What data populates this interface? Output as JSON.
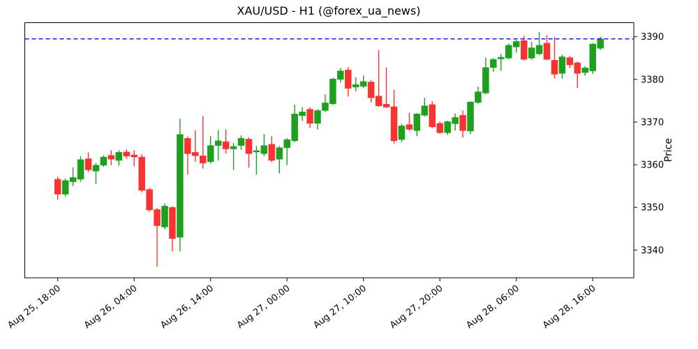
{
  "chart_data": {
    "type": "candlestick",
    "title": "XAU/USD - H1 (@forex_ua_news)",
    "symbol": "XAU/USD",
    "timeframe": "H1",
    "source_handle": "@forex_ua_news",
    "ylabel_right": "Price",
    "legend": "none",
    "grid": false,
    "y_ticks": [
      3340,
      3350,
      3360,
      3370,
      3380,
      3390
    ],
    "ylim": [
      3333.5,
      3393.3
    ],
    "x_tick_labels": [
      "Aug 25, 18:00",
      "Aug 26, 04:00",
      "Aug 26, 14:00",
      "Aug 27, 00:00",
      "Aug 27, 10:00",
      "Aug 27, 20:00",
      "Aug 28, 06:00",
      "Aug 28, 16:00"
    ],
    "x_tick_candle_indices": [
      0,
      10,
      20,
      30,
      40,
      50,
      60,
      70
    ],
    "hline": {
      "value": 3389.5,
      "color": "#0000ee",
      "style": "dashed"
    },
    "colors": {
      "up": "#1da01d",
      "down": "#f93232",
      "axis": "#000000",
      "background": "#ffffff"
    },
    "columns": [
      "time",
      "open",
      "high",
      "low",
      "close"
    ],
    "candles": [
      [
        "Aug 25 18:00",
        3356.6,
        3357.2,
        3351.8,
        3353.1
      ],
      [
        "Aug 25 19:00",
        3353.1,
        3356.8,
        3352.6,
        3356.3
      ],
      [
        "Aug 25 20:00",
        3356.0,
        3359.4,
        3355.0,
        3357.0
      ],
      [
        "Aug 25 21:00",
        3356.6,
        3362.0,
        3356.0,
        3361.2
      ],
      [
        "Aug 25 22:00",
        3361.4,
        3362.9,
        3358.3,
        3358.8
      ],
      [
        "Aug 25 23:00",
        3358.5,
        3360.4,
        3355.5,
        3359.9
      ],
      [
        "Aug 26 00:00",
        3359.9,
        3362.2,
        3359.5,
        3361.8
      ],
      [
        "Aug 26 01:00",
        3362.2,
        3363.4,
        3359.9,
        3361.3
      ],
      [
        "Aug 26 02:00",
        3361.0,
        3363.4,
        3359.8,
        3362.9
      ],
      [
        "Aug 26 03:00",
        3363.0,
        3363.6,
        3361.4,
        3362.0
      ],
      [
        "Aug 26 04:00",
        3362.3,
        3363.4,
        3359.6,
        3361.8
      ],
      [
        "Aug 26 05:00",
        3361.8,
        3362.5,
        3353.5,
        3354.0
      ],
      [
        "Aug 26 06:00",
        3354.2,
        3354.6,
        3349.0,
        3349.4
      ],
      [
        "Aug 26 07:00",
        3349.5,
        3349.9,
        3336.1,
        3345.7
      ],
      [
        "Aug 26 08:00",
        3345.4,
        3350.9,
        3344.9,
        3350.3
      ],
      [
        "Aug 26 09:00",
        3350.0,
        3350.3,
        3339.7,
        3342.7
      ],
      [
        "Aug 26 10:00",
        3343.0,
        3370.8,
        3339.7,
        3367.1
      ],
      [
        "Aug 26 11:00",
        3366.2,
        3366.6,
        3357.7,
        3362.6
      ],
      [
        "Aug 26 12:00",
        3362.9,
        3368.1,
        3360.7,
        3362.1
      ],
      [
        "Aug 26 13:00",
        3362.1,
        3371.4,
        3359.1,
        3360.4
      ],
      [
        "Aug 26 14:00",
        3360.7,
        3366.7,
        3360.3,
        3364.5
      ],
      [
        "Aug 26 15:00",
        3364.5,
        3368.1,
        3361.0,
        3365.6
      ],
      [
        "Aug 26 16:00",
        3365.4,
        3368.3,
        3362.6,
        3363.7
      ],
      [
        "Aug 26 17:00",
        3363.7,
        3365.1,
        3358.8,
        3364.3
      ],
      [
        "Aug 26 18:00",
        3364.5,
        3366.9,
        3363.5,
        3366.2
      ],
      [
        "Aug 26 19:00",
        3366.0,
        3366.4,
        3359.3,
        3362.6
      ],
      [
        "Aug 26 20:00",
        3363.0,
        3364.4,
        3357.7,
        3363.3
      ],
      [
        "Aug 26 21:00",
        3362.6,
        3367.2,
        3362.0,
        3364.5
      ],
      [
        "Aug 26 22:00",
        3364.8,
        3366.7,
        3360.6,
        3361.0
      ],
      [
        "Aug 26 23:00",
        3361.3,
        3364.4,
        3358.0,
        3364.0
      ],
      [
        "Aug 27 00:00",
        3364.0,
        3366.2,
        3359.9,
        3365.9
      ],
      [
        "Aug 27 01:00",
        3365.6,
        3374.1,
        3365.3,
        3371.9
      ],
      [
        "Aug 27 02:00",
        3371.5,
        3373.5,
        3370.3,
        3372.4
      ],
      [
        "Aug 27 03:00",
        3373.0,
        3373.5,
        3368.6,
        3369.7
      ],
      [
        "Aug 27 04:00",
        3369.7,
        3373.0,
        3368.3,
        3372.7
      ],
      [
        "Aug 27 05:00",
        3372.7,
        3376.5,
        3372.3,
        3374.5
      ],
      [
        "Aug 27 06:00",
        3374.3,
        3380.4,
        3374.0,
        3380.1
      ],
      [
        "Aug 27 07:00",
        3380.0,
        3382.7,
        3379.3,
        3382.0
      ],
      [
        "Aug 27 08:00",
        3382.2,
        3382.9,
        3376.0,
        3377.9
      ],
      [
        "Aug 27 09:00",
        3378.2,
        3380.5,
        3377.2,
        3378.8
      ],
      [
        "Aug 27 10:00",
        3378.4,
        3380.9,
        3378.0,
        3379.5
      ],
      [
        "Aug 27 11:00",
        3379.4,
        3379.8,
        3374.6,
        3375.7
      ],
      [
        "Aug 27 12:00",
        3376.1,
        3386.9,
        3373.6,
        3373.8
      ],
      [
        "Aug 27 13:00",
        3374.2,
        3382.8,
        3373.3,
        3373.5
      ],
      [
        "Aug 27 14:00",
        3373.6,
        3377.6,
        3365.0,
        3365.6
      ],
      [
        "Aug 27 15:00",
        3365.9,
        3369.6,
        3365.3,
        3369.1
      ],
      [
        "Aug 27 16:00",
        3369.4,
        3372.2,
        3368.0,
        3368.3
      ],
      [
        "Aug 27 17:00",
        3368.0,
        3372.1,
        3366.7,
        3371.9
      ],
      [
        "Aug 27 18:00",
        3371.6,
        3375.7,
        3371.3,
        3373.8
      ],
      [
        "Aug 27 19:00",
        3374.1,
        3374.9,
        3368.5,
        3368.9
      ],
      [
        "Aug 27 20:00",
        3369.7,
        3370.1,
        3367.3,
        3367.5
      ],
      [
        "Aug 27 21:00",
        3367.5,
        3370.3,
        3367.0,
        3370.1
      ],
      [
        "Aug 27 22:00",
        3369.6,
        3372.0,
        3368.0,
        3371.1
      ],
      [
        "Aug 27 23:00",
        3371.6,
        3372.7,
        3366.4,
        3368.0
      ],
      [
        "Aug 28 00:00",
        3367.9,
        3374.9,
        3367.2,
        3374.7
      ],
      [
        "Aug 28 01:00",
        3374.6,
        3378.3,
        3374.3,
        3377.1
      ],
      [
        "Aug 28 02:00",
        3376.8,
        3385.1,
        3376.5,
        3382.8
      ],
      [
        "Aug 28 03:00",
        3382.8,
        3385.0,
        3381.8,
        3384.7
      ],
      [
        "Aug 28 04:00",
        3384.8,
        3386.0,
        3382.0,
        3385.2
      ],
      [
        "Aug 28 05:00",
        3385.0,
        3388.4,
        3384.7,
        3388.0
      ],
      [
        "Aug 28 06:00",
        3387.6,
        3389.3,
        3386.3,
        3388.9
      ],
      [
        "Aug 28 07:00",
        3389.1,
        3390.2,
        3384.5,
        3384.7
      ],
      [
        "Aug 28 08:00",
        3385.0,
        3388.8,
        3384.6,
        3387.4
      ],
      [
        "Aug 28 09:00",
        3386.0,
        3391.1,
        3385.7,
        3388.0
      ],
      [
        "Aug 28 10:00",
        3388.5,
        3390.4,
        3384.5,
        3384.7
      ],
      [
        "Aug 28 11:00",
        3384.5,
        3389.9,
        3380.2,
        3381.2
      ],
      [
        "Aug 28 12:00",
        3381.4,
        3385.8,
        3380.2,
        3385.3
      ],
      [
        "Aug 28 13:00",
        3385.1,
        3385.5,
        3382.7,
        3383.4
      ],
      [
        "Aug 28 14:00",
        3383.9,
        3384.2,
        3378.0,
        3381.4
      ],
      [
        "Aug 28 15:00",
        3381.6,
        3383.1,
        3380.9,
        3382.7
      ],
      [
        "Aug 28 16:00",
        3382.0,
        3388.5,
        3381.3,
        3388.3
      ],
      [
        "Aug 28 17:00",
        3387.3,
        3390.0,
        3386.9,
        3389.5
      ]
    ]
  }
}
